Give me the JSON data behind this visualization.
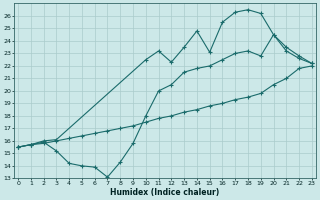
{
  "xlabel": "Humidex (Indice chaleur)",
  "bg_color": "#cce8e8",
  "grid_color": "#aacccc",
  "line_color": "#1a6b6b",
  "line1": {
    "x": [
      0,
      1,
      2,
      3,
      4,
      5,
      6,
      7,
      8,
      9,
      10,
      11,
      12,
      13,
      14,
      15,
      16,
      17,
      18,
      19,
      20,
      21,
      22,
      23
    ],
    "y": [
      15.5,
      15.7,
      15.8,
      16.0,
      16.2,
      16.4,
      16.6,
      16.8,
      17.0,
      17.2,
      17.5,
      17.8,
      18.0,
      18.3,
      18.5,
      18.8,
      19.0,
      19.3,
      19.5,
      19.8,
      20.5,
      21.0,
      21.8,
      22.0
    ]
  },
  "line2": {
    "x": [
      0,
      1,
      2,
      3,
      10,
      11,
      12,
      13,
      14,
      15,
      16,
      17,
      18,
      19,
      20,
      21,
      22,
      23
    ],
    "y": [
      15.5,
      15.7,
      16.0,
      16.1,
      22.5,
      23.2,
      22.3,
      23.5,
      24.8,
      23.1,
      25.5,
      26.3,
      26.5,
      26.2,
      24.5,
      23.2,
      22.6,
      22.2
    ]
  },
  "line3": {
    "x": [
      0,
      1,
      2,
      3,
      4,
      5,
      6,
      7,
      8,
      9,
      10,
      11,
      12,
      13,
      14,
      15,
      16,
      17,
      18,
      19,
      20,
      21,
      22,
      23
    ],
    "y": [
      15.5,
      15.7,
      15.9,
      15.2,
      14.2,
      14.0,
      13.9,
      13.1,
      14.3,
      15.8,
      18.0,
      20.0,
      20.5,
      21.5,
      21.8,
      22.0,
      22.5,
      23.0,
      23.2,
      22.8,
      24.5,
      23.5,
      22.8,
      22.2
    ]
  },
  "xlim": [
    -0.3,
    23.3
  ],
  "ylim": [
    13,
    27
  ],
  "yticks": [
    13,
    14,
    15,
    16,
    17,
    18,
    19,
    20,
    21,
    22,
    23,
    24,
    25,
    26
  ],
  "xticks": [
    0,
    1,
    2,
    3,
    4,
    5,
    6,
    7,
    8,
    9,
    10,
    11,
    12,
    13,
    14,
    15,
    16,
    17,
    18,
    19,
    20,
    21,
    22,
    23
  ]
}
